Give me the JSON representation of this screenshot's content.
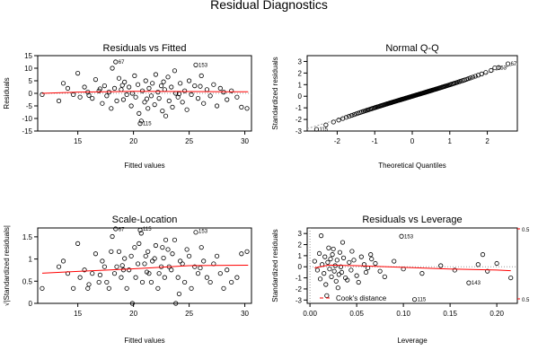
{
  "figure": {
    "title": "Residual Diagnostics"
  },
  "colors": {
    "points": "#000000",
    "smooth": "#ff0000",
    "reference": "#999999",
    "cook": "#ff0000"
  },
  "chart_data": [
    {
      "id": "p1",
      "type": "scatter",
      "title": "Residuals vs Fitted",
      "xlabel": "Fitted values",
      "ylabel": "Residuals",
      "xlim": [
        11.4,
        30.6
      ],
      "ylim": [
        -15,
        15
      ],
      "xticks": [
        15,
        20,
        25,
        30
      ],
      "yticks": [
        -15,
        -10,
        -5,
        0,
        5,
        10,
        15
      ],
      "zero_line": true,
      "smooth": [
        [
          11.8,
          0.0
        ],
        [
          15,
          0.5
        ],
        [
          20,
          0.8
        ],
        [
          25,
          0.7
        ],
        [
          30.3,
          0.6
        ]
      ],
      "labels": [
        {
          "text": "67",
          "x": 18.4,
          "y": 12.5
        },
        {
          "text": "153",
          "x": 25.6,
          "y": 11.3
        },
        {
          "text": "115",
          "x": 20.6,
          "y": -12.0
        }
      ],
      "points": [
        [
          18.4,
          12.5
        ],
        [
          25.6,
          11.3
        ],
        [
          20.6,
          -12.0
        ],
        [
          11.8,
          -0.5
        ],
        [
          13.3,
          -3.0
        ],
        [
          13.7,
          4.0
        ],
        [
          14.1,
          2.0
        ],
        [
          14.6,
          -0.5
        ],
        [
          15.0,
          8.0
        ],
        [
          15.2,
          -1.5
        ],
        [
          15.6,
          2.5
        ],
        [
          15.9,
          0.5
        ],
        [
          16.3,
          -2.0
        ],
        [
          16.6,
          5.5
        ],
        [
          16.9,
          1.0
        ],
        [
          17.2,
          -4.0
        ],
        [
          17.4,
          3.0
        ],
        [
          17.6,
          -1.0
        ],
        [
          17.8,
          0.5
        ],
        [
          18.0,
          -6.0
        ],
        [
          18.1,
          10.0
        ],
        [
          18.3,
          2.0
        ],
        [
          18.5,
          -3.0
        ],
        [
          18.7,
          6.0
        ],
        [
          18.9,
          1.5
        ],
        [
          19.1,
          -2.5
        ],
        [
          19.2,
          4.5
        ],
        [
          19.4,
          -0.5
        ],
        [
          19.6,
          2.5
        ],
        [
          19.8,
          -5.0
        ],
        [
          19.9,
          0.0
        ],
        [
          20.1,
          7.0
        ],
        [
          20.2,
          -1.5
        ],
        [
          20.4,
          3.5
        ],
        [
          20.5,
          -8.0
        ],
        [
          20.7,
          -11.0
        ],
        [
          20.8,
          1.0
        ],
        [
          21.0,
          -3.5
        ],
        [
          21.1,
          5.0
        ],
        [
          21.3,
          -6.0
        ],
        [
          21.4,
          2.0
        ],
        [
          21.6,
          -1.0
        ],
        [
          21.7,
          4.0
        ],
        [
          21.9,
          -4.5
        ],
        [
          22.0,
          7.5
        ],
        [
          22.2,
          0.5
        ],
        [
          22.3,
          -2.0
        ],
        [
          22.5,
          3.0
        ],
        [
          22.6,
          -7.0
        ],
        [
          22.8,
          1.5
        ],
        [
          22.9,
          -9.0
        ],
        [
          23.1,
          6.5
        ],
        [
          23.2,
          -3.0
        ],
        [
          23.4,
          2.5
        ],
        [
          23.5,
          -5.5
        ],
        [
          23.7,
          9.0
        ],
        [
          23.8,
          0.0
        ],
        [
          24.0,
          -1.5
        ],
        [
          24.2,
          4.0
        ],
        [
          24.4,
          -3.5
        ],
        [
          24.6,
          1.0
        ],
        [
          24.8,
          -6.5
        ],
        [
          25.0,
          5.0
        ],
        [
          25.2,
          -0.5
        ],
        [
          25.5,
          3.0
        ],
        [
          25.8,
          -2.0
        ],
        [
          26.1,
          7.0
        ],
        [
          26.3,
          -4.0
        ],
        [
          26.6,
          1.5
        ],
        [
          26.9,
          -1.0
        ],
        [
          27.2,
          3.5
        ],
        [
          27.5,
          -5.0
        ],
        [
          27.8,
          2.0
        ],
        [
          28.1,
          0.5
        ],
        [
          28.4,
          -2.5
        ],
        [
          28.8,
          1.0
        ],
        [
          29.3,
          -1.5
        ],
        [
          29.7,
          -5.5
        ],
        [
          30.2,
          -6.0
        ],
        [
          16.0,
          -0.8
        ],
        [
          17.0,
          1.8
        ],
        [
          19.0,
          3.2
        ],
        [
          21.2,
          -2.2
        ],
        [
          22.7,
          4.6
        ],
        [
          24.1,
          -0.2
        ],
        [
          26.0,
          2.8
        ]
      ]
    },
    {
      "id": "p2",
      "type": "scatter",
      "title": "Normal Q-Q",
      "xlabel": "Theoretical Quantiles",
      "ylabel": "Standardized residuals",
      "xlim": [
        -2.8,
        2.8
      ],
      "ylim": [
        -3,
        3.5
      ],
      "xticks": [
        -2,
        -1,
        0,
        1,
        2
      ],
      "yticks": [
        -3,
        -2,
        -1,
        0,
        1,
        2,
        3
      ],
      "reference_line": [
        [
          -2.8,
          -2.8
        ],
        [
          2.8,
          2.8
        ]
      ],
      "labels": [
        {
          "text": "115",
          "x": -2.55,
          "y": -2.85
        },
        {
          "text": "153",
          "x": 2.2,
          "y": 2.45
        },
        {
          "text": "67",
          "x": 2.55,
          "y": 2.8
        }
      ],
      "qq": {
        "n": 140,
        "slope": 0.97,
        "cubic": 0.02,
        "last_points": [
          [
            2.2,
            2.45
          ],
          [
            2.55,
            2.8
          ]
        ],
        "first_point": [
          -2.55,
          -2.85
        ]
      }
    },
    {
      "id": "p3",
      "type": "scatter",
      "title": "Scale-Location",
      "xlabel": "Fitted values",
      "ylabel": "√|Standardized residuals|",
      "xlim": [
        11.4,
        30.6
      ],
      "ylim": [
        0,
        1.7
      ],
      "xticks": [
        15,
        20,
        25,
        30
      ],
      "yticks": [
        0.0,
        0.5,
        1.0,
        1.5
      ],
      "smooth": [
        [
          11.8,
          0.68
        ],
        [
          15,
          0.72
        ],
        [
          20,
          0.78
        ],
        [
          25,
          0.85
        ],
        [
          30.3,
          0.86
        ]
      ],
      "labels": [
        {
          "text": "67",
          "x": 18.4,
          "y": 1.67
        },
        {
          "text": "115",
          "x": 20.6,
          "y": 1.68
        },
        {
          "text": "153",
          "x": 25.6,
          "y": 1.63
        }
      ],
      "derive_from": "p1"
    },
    {
      "id": "p4",
      "type": "scatter",
      "title": "Residuals vs Leverage",
      "xlabel": "Leverage",
      "ylabel": "Standardized residuals",
      "xlim": [
        -0.003,
        0.222
      ],
      "ylim": [
        -3.3,
        3.5
      ],
      "xticks": [
        0.0,
        0.05,
        0.1,
        0.15,
        0.2
      ],
      "yticks": [
        -3,
        -2,
        -1,
        0,
        1,
        2,
        3
      ],
      "right_axis_labels": [
        "0.5",
        "0.5"
      ],
      "legend": "Cook's distance",
      "smooth": [
        [
          0.005,
          -0.1
        ],
        [
          0.02,
          0.15
        ],
        [
          0.05,
          0.1
        ],
        [
          0.1,
          -0.05
        ],
        [
          0.15,
          -0.2
        ],
        [
          0.2,
          -0.3
        ],
        [
          0.215,
          -0.35
        ]
      ],
      "labels": [
        {
          "text": "153",
          "x": 0.098,
          "y": 2.75
        },
        {
          "text": "115",
          "x": 0.112,
          "y": -2.95
        },
        {
          "text": "143",
          "x": 0.17,
          "y": -1.45
        }
      ],
      "points": [
        [
          0.098,
          2.75
        ],
        [
          0.112,
          -2.95
        ],
        [
          0.17,
          -1.45
        ],
        [
          0.012,
          2.8
        ],
        [
          0.018,
          -2.6
        ],
        [
          0.025,
          1.6
        ],
        [
          0.03,
          -1.9
        ],
        [
          0.035,
          2.2
        ],
        [
          0.04,
          -1.2
        ],
        [
          0.045,
          1.4
        ],
        [
          0.05,
          -0.8
        ],
        [
          0.055,
          0.9
        ],
        [
          0.06,
          -0.5
        ],
        [
          0.065,
          1.1
        ],
        [
          0.07,
          0.3
        ],
        [
          0.08,
          -0.9
        ],
        [
          0.09,
          0.5
        ],
        [
          0.1,
          -0.2
        ],
        [
          0.12,
          -0.6
        ],
        [
          0.14,
          0.1
        ],
        [
          0.155,
          -0.3
        ],
        [
          0.18,
          0.2
        ],
        [
          0.185,
          1.1
        ],
        [
          0.19,
          -0.4
        ],
        [
          0.2,
          0.3
        ],
        [
          0.215,
          -1.0
        ],
        [
          0.005,
          0.5
        ],
        [
          0.008,
          -0.3
        ],
        [
          0.01,
          1.2
        ],
        [
          0.011,
          -1.1
        ],
        [
          0.013,
          0.2
        ],
        [
          0.015,
          -0.6
        ],
        [
          0.016,
          0.9
        ],
        [
          0.017,
          -1.6
        ],
        [
          0.019,
          0.4
        ],
        [
          0.02,
          1.7
        ],
        [
          0.021,
          -0.2
        ],
        [
          0.022,
          0.7
        ],
        [
          0.023,
          -0.9
        ],
        [
          0.024,
          1.1
        ],
        [
          0.026,
          -0.4
        ],
        [
          0.027,
          0.1
        ],
        [
          0.028,
          -1.3
        ],
        [
          0.029,
          0.6
        ],
        [
          0.031,
          -0.7
        ],
        [
          0.032,
          1.3
        ],
        [
          0.033,
          0.0
        ],
        [
          0.034,
          -0.5
        ],
        [
          0.036,
          0.8
        ],
        [
          0.038,
          -1.0
        ],
        [
          0.042,
          0.4
        ],
        [
          0.044,
          -0.3
        ],
        [
          0.047,
          0.6
        ],
        [
          0.052,
          -1.4
        ],
        [
          0.058,
          0.2
        ],
        [
          0.062,
          -0.1
        ],
        [
          0.066,
          0.7
        ],
        [
          0.075,
          -0.4
        ]
      ]
    }
  ]
}
